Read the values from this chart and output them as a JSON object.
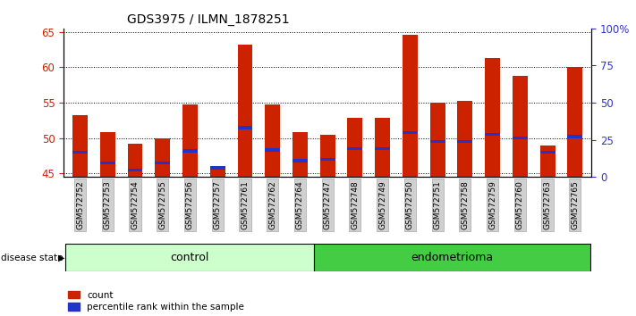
{
  "title": "GDS3975 / ILMN_1878251",
  "samples": [
    "GSM572752",
    "GSM572753",
    "GSM572754",
    "GSM572755",
    "GSM572756",
    "GSM572757",
    "GSM572761",
    "GSM572762",
    "GSM572764",
    "GSM572747",
    "GSM572748",
    "GSM572749",
    "GSM572750",
    "GSM572751",
    "GSM572758",
    "GSM572759",
    "GSM572760",
    "GSM572763",
    "GSM572765"
  ],
  "count_values": [
    53.2,
    50.8,
    49.2,
    50.0,
    54.8,
    45.6,
    63.2,
    54.7,
    50.8,
    50.5,
    52.8,
    52.8,
    64.6,
    55.0,
    55.2,
    61.3,
    58.8,
    49.0,
    60.0
  ],
  "percentile_values": [
    48.0,
    46.5,
    45.5,
    46.5,
    48.2,
    45.8,
    51.5,
    48.3,
    46.8,
    47.0,
    48.5,
    48.5,
    50.8,
    49.5,
    49.5,
    50.5,
    50.0,
    48.0,
    50.2
  ],
  "control_count": 9,
  "endometrioma_count": 10,
  "control_label": "control",
  "endometrioma_label": "endometrioma",
  "disease_state_label": "disease state",
  "legend_count_label": "count",
  "legend_percentile_label": "percentile rank within the sample",
  "ylim_left": [
    44.5,
    65.5
  ],
  "ylim_right": [
    0,
    100
  ],
  "yticks_left": [
    45,
    50,
    55,
    60,
    65
  ],
  "yticks_right": [
    0,
    25,
    50,
    75,
    100
  ],
  "ytick_labels_right": [
    "0",
    "25",
    "50",
    "75",
    "100%"
  ],
  "bar_color_red": "#cc2200",
  "bar_color_blue": "#2233cc",
  "control_bg": "#ccffcc",
  "endometrioma_bg": "#44cc44",
  "left_tick_color": "#cc2200",
  "right_tick_color": "#3333cc",
  "bar_width": 0.55,
  "ybase": 44.5
}
